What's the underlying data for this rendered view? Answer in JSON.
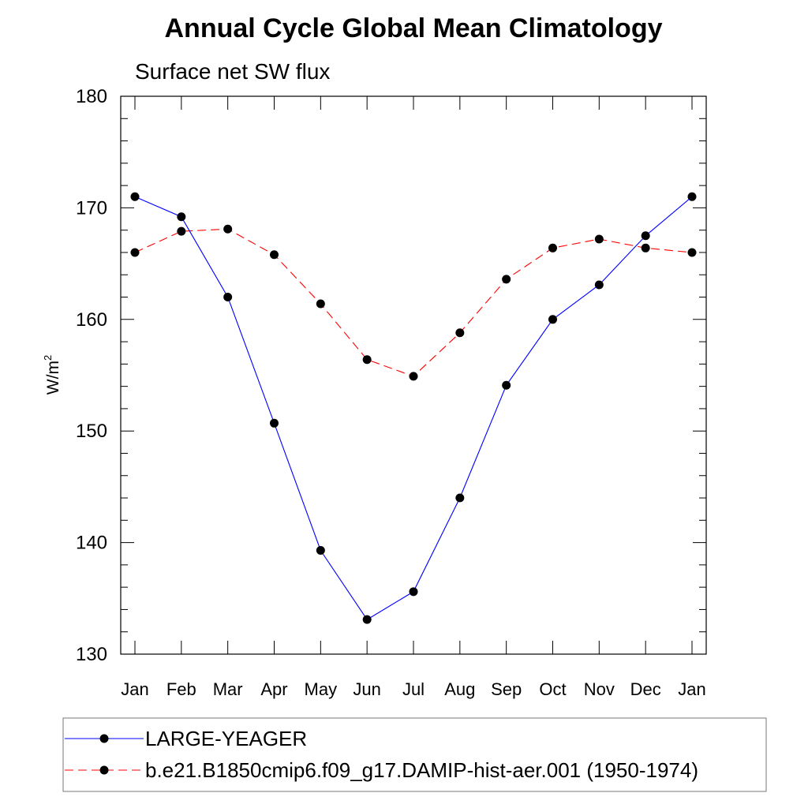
{
  "chart_data": {
    "type": "line",
    "title": "Annual Cycle Global Mean Climatology",
    "subtitle": "Surface net SW flux",
    "ylabel": "W/m",
    "ylabel_superscript": "2",
    "xlabel": "",
    "categories": [
      "Jan",
      "Feb",
      "Mar",
      "Apr",
      "May",
      "Jun",
      "Jul",
      "Aug",
      "Sep",
      "Oct",
      "Nov",
      "Dec",
      "Jan"
    ],
    "ylim": [
      130,
      180
    ],
    "yticks": [
      "130",
      "140",
      "150",
      "160",
      "170",
      "180"
    ],
    "grid": false,
    "legend_position": "bottom",
    "series": [
      {
        "name": "LARGE-YEAGER",
        "color": "#0000ff",
        "line_style": "solid",
        "marker": "filled-circle",
        "values": [
          171.0,
          169.2,
          162.0,
          150.7,
          139.3,
          133.1,
          135.6,
          144.0,
          154.1,
          160.0,
          163.1,
          167.5,
          171.0
        ]
      },
      {
        "name": "b.e21.B1850cmip6.f09_g17.DAMIP-hist-aer.001 (1950-1974)",
        "color": "#ff0000",
        "line_style": "dashed",
        "marker": "filled-circle",
        "values": [
          166.0,
          167.9,
          168.1,
          165.8,
          161.4,
          156.4,
          154.9,
          158.8,
          163.6,
          166.4,
          167.2,
          166.4,
          166.0
        ]
      }
    ]
  }
}
